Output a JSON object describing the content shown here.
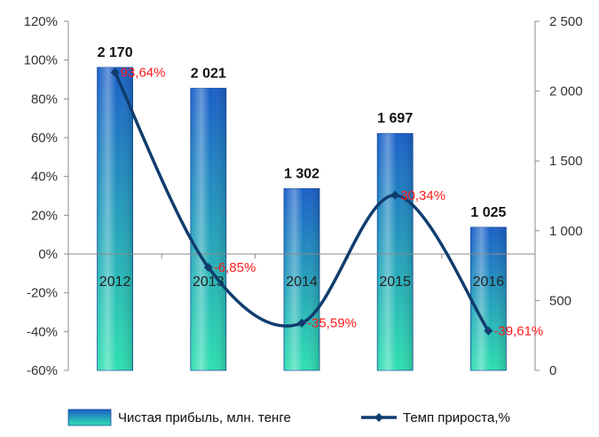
{
  "chart_data": {
    "type": "bar",
    "categories": [
      "2012",
      "2013",
      "2014",
      "2015",
      "2016"
    ],
    "series": [
      {
        "name": "Чистая прибыль, млн. тенге",
        "type": "bar",
        "axis": "right",
        "values": [
          2170,
          2021,
          1302,
          1697,
          1025
        ],
        "labels": [
          "2 170",
          "2 021",
          "1 302",
          "1 697",
          "1 025"
        ]
      },
      {
        "name": "Темп прироста,%",
        "type": "line",
        "axis": "left",
        "values": [
          93.64,
          -6.85,
          -35.59,
          30.34,
          -39.61
        ],
        "labels": [
          "93,64%",
          "-6,85%",
          "-35,59%",
          "30,34%",
          "-39,61%"
        ]
      }
    ],
    "y_left": {
      "lim": [
        -60,
        120
      ],
      "ticks": [
        "-60%",
        "-40%",
        "-20%",
        "0%",
        "20%",
        "40%",
        "60%",
        "80%",
        "100%",
        "120%"
      ]
    },
    "y_right": {
      "lim": [
        0,
        2500
      ],
      "ticks": [
        "0",
        "500",
        "1 000",
        "1 500",
        "2 000",
        "2 500"
      ]
    },
    "legend": "bottom",
    "colors": {
      "bar_top": "#1a5fc8",
      "bar_bottom": "#2ee0b0",
      "line": "#0f3d6e",
      "growth_label": "#ff1a1a",
      "axis": "#8a8a8a"
    }
  }
}
